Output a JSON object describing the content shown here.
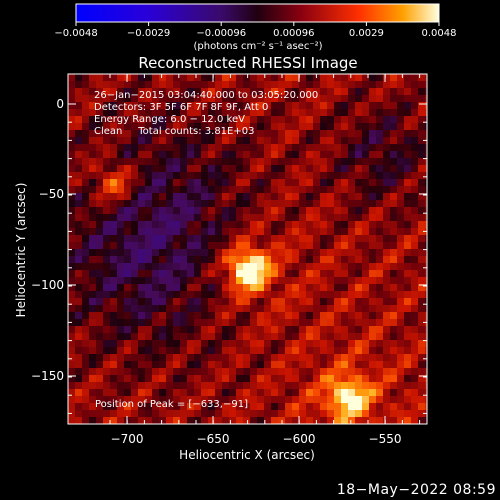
{
  "colorbar": {
    "ticks": [
      "−0.0048",
      "−0.0029",
      "−0.00096",
      "0.00096",
      "0.0029",
      "0.0048"
    ],
    "unit_label": "(photons cm⁻² s⁻¹ asec⁻²)"
  },
  "plot": {
    "title": "Reconstructed RHESSI Image",
    "info_lines": [
      "26−Jan−2015 03:04:40.000 to 03:05:20.000",
      "Detectors: 3F 5F 6F 7F 8F 9F, Att 0",
      "Energy Range: 6.0 − 12.0 keV",
      "Clean     Total counts: 3.81E+03"
    ],
    "peak_text": "Position of Peak = [−633,−91]",
    "xlabel": "Heliocentric X (arcsec)",
    "ylabel": "Heliocentric Y (arcsec)",
    "xticks": [
      "−700",
      "−650",
      "−600",
      "−550"
    ],
    "yticks": [
      "0",
      "−50",
      "−100",
      "−150"
    ]
  },
  "image": {
    "x_range": [
      -728,
      -535
    ],
    "y_range": [
      -176,
      12
    ],
    "sources": [
      {
        "x": -633,
        "y": -91,
        "strength": 1.0
      },
      {
        "x": -579,
        "y": -160,
        "strength": 0.75
      },
      {
        "x": -705,
        "y": -45,
        "strength": 0.55
      }
    ]
  },
  "footer": {
    "timestamp": "18−May−2022 08:59"
  },
  "colors": {
    "background": "#000000",
    "text": "#ffffff"
  }
}
